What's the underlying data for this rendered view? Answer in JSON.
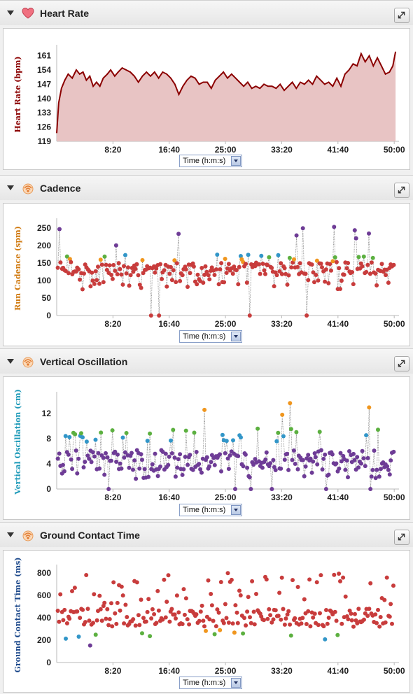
{
  "colors": {
    "hr_line": "#8b0000",
    "hr_fill": "#e8c4c4",
    "red": "#c83c3c",
    "orange": "#f0961e",
    "green": "#5cb040",
    "blue": "#3296c8",
    "purple": "#6e3c96",
    "connector": "#8a8a8a"
  },
  "x_ticks": [
    "8:20",
    "16:40",
    "25:00",
    "33:20",
    "41:40",
    "50:00"
  ],
  "x_selector": "Time (h:m:s)",
  "panels": [
    {
      "title": "Heart Rate",
      "icon": "heart-icon"
    },
    {
      "title": "Cadence",
      "icon": "runner-icon"
    },
    {
      "title": "Vertical Oscillation",
      "icon": "runner-icon"
    },
    {
      "title": "Ground Contact Time",
      "icon": "runner-icon"
    }
  ],
  "chart_data": [
    {
      "type": "area",
      "ylabel": "Heart Rate (bpm)",
      "ylabel_color": "#8b0000",
      "xlabel": "Time (h:m:s)",
      "xunit": "minutes",
      "xlim": [
        0,
        50.5
      ],
      "ylim": [
        119,
        165
      ],
      "yticks": [
        119,
        126,
        133,
        140,
        147,
        154,
        161
      ],
      "xticks": [
        8.333,
        16.667,
        25,
        33.333,
        41.667,
        50
      ],
      "series": [
        {
          "x": [
            0,
            0.3,
            0.7,
            1.2,
            1.7,
            2.3,
            2.9,
            3.4,
            3.9,
            4.4,
            4.9,
            5.4,
            5.9,
            6.4,
            6.9,
            7.5,
            8,
            8.6,
            9.1,
            9.7,
            10.3,
            10.9,
            11.5,
            12.1,
            12.7,
            13.3,
            13.9,
            14.5,
            15.1,
            15.7,
            16.3,
            16.9,
            17.5,
            18.1,
            18.7,
            19.3,
            19.9,
            20.5,
            21.1,
            21.7,
            22.3,
            22.9,
            23.5,
            24.1,
            24.7,
            25.3,
            25.9,
            26.5,
            27.1,
            27.7,
            28.3,
            28.9,
            29.5,
            30.1,
            30.7,
            31.3,
            31.9,
            32.5,
            33.1,
            33.7,
            34.3,
            34.9,
            35.5,
            36.1,
            36.7,
            37.3,
            37.9,
            38.5,
            39.1,
            39.7,
            40.3,
            40.9,
            41.5,
            42.1,
            42.7,
            43.3,
            43.9,
            44.5,
            45.1,
            45.7,
            46.3,
            46.9,
            47.5,
            48.1,
            48.7,
            49.3,
            49.8,
            50.2
          ],
          "y": [
            123,
            138,
            145,
            149,
            152,
            150,
            154,
            152,
            153,
            149,
            151,
            146,
            148,
            146,
            150,
            152,
            154,
            151,
            153,
            155,
            154,
            153,
            151,
            148,
            151,
            153,
            151,
            153,
            150,
            153,
            152,
            150,
            147,
            142,
            146,
            149,
            151,
            150,
            147,
            148,
            148,
            145,
            149,
            151,
            153,
            150,
            152,
            150,
            148,
            146,
            148,
            145,
            146,
            145,
            147,
            146,
            146,
            145,
            147,
            144,
            146,
            148,
            145,
            148,
            147,
            149,
            147,
            151,
            149,
            147,
            148,
            146,
            150,
            146,
            152,
            154,
            157,
            156,
            162,
            158,
            161,
            156,
            160,
            156,
            152,
            153,
            156,
            163
          ]
        }
      ]
    },
    {
      "type": "scatter",
      "ylabel": "Run Cadence (spm)",
      "ylabel_color": "#d07a10",
      "xlabel": "Time (h:m:s)",
      "xunit": "minutes",
      "xlim": [
        0,
        50.5
      ],
      "ylim": [
        0,
        270
      ],
      "yticks": [
        0,
        50,
        100,
        150,
        200,
        250
      ],
      "xticks": [
        8.333,
        16.667,
        25,
        33.333,
        41.667,
        50
      ]
    },
    {
      "type": "scatter",
      "ylabel": "Vertical Oscillation (cm)",
      "ylabel_color": "#1e9ab8",
      "xlabel": "Time (h:m:s)",
      "xunit": "minutes",
      "xlim": [
        0,
        50.5
      ],
      "ylim": [
        0,
        15
      ],
      "yticks": [
        0,
        4,
        8,
        12
      ],
      "xticks": [
        8.333,
        16.667,
        25,
        33.333,
        41.667,
        50
      ]
    },
    {
      "type": "scatter",
      "ylabel": "Ground Contact Time (ms)",
      "ylabel_color": "#1e4a8c",
      "xlabel": "Time (h:m:s)",
      "xunit": "minutes",
      "xlim": [
        0,
        50.5
      ],
      "ylim": [
        0,
        850
      ],
      "yticks": [
        0,
        200,
        400,
        600,
        800
      ],
      "xticks": [
        8.333,
        16.667,
        25,
        33.333,
        41.667,
        50
      ]
    }
  ]
}
